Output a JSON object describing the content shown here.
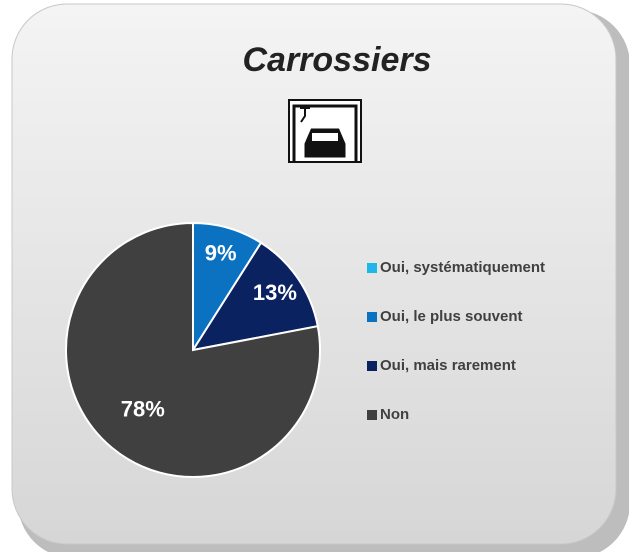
{
  "chart_data": {
    "type": "pie",
    "title": "Carrossiers",
    "categories": [
      "Oui, systématiquement",
      "Oui, le plus souvent",
      "Oui, mais rarement",
      "Non"
    ],
    "values": [
      0,
      9,
      13,
      78
    ],
    "value_labels": [
      null,
      "9%",
      "13%",
      "78%"
    ],
    "colors": [
      "#1fb6ea",
      "#0b72c1",
      "#0b2260",
      "#404040"
    ]
  }
}
